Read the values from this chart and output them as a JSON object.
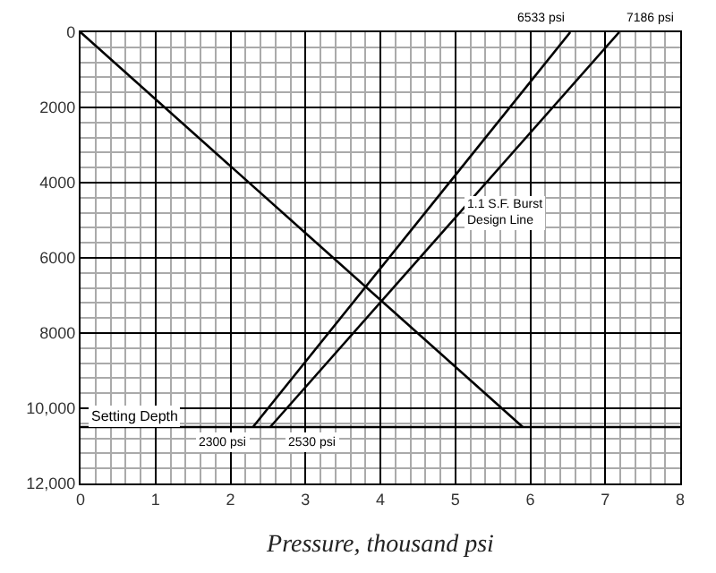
{
  "chart_data": {
    "type": "line",
    "xlabel": "Pressure, thousand psi",
    "xlim": [
      0,
      8
    ],
    "xticks": [
      0,
      1,
      2,
      3,
      4,
      5,
      6,
      7,
      8
    ],
    "ylim": [
      12000,
      0
    ],
    "yticks": [
      0,
      2000,
      4000,
      6000,
      8000,
      {
        "value": 10000,
        "label": "10,000"
      },
      {
        "value": 12000,
        "label": "12,000"
      }
    ],
    "series": [
      {
        "color": "#000000",
        "x": [
          0,
          5.9
        ],
        "values": [
          0,
          10500
        ]
      },
      {
        "color": "#000000",
        "x": [
          2.3,
          6.533
        ],
        "values": [
          10500,
          0
        ]
      },
      {
        "color": "#000000",
        "x": [
          2.53,
          7.186
        ],
        "values": [
          10500,
          0
        ]
      }
    ],
    "ref_lines": [
      {
        "axis": "y",
        "value": 10500,
        "label": "Setting Depth",
        "color": "#000000"
      }
    ],
    "annotations": [
      {
        "text": "6533 psi",
        "x": 6.533,
        "y": 0
      },
      {
        "text": "7186 psi",
        "x": 7.186,
        "y": 0
      },
      {
        "text": "2300 psi",
        "x": 2.3,
        "y": 10500
      },
      {
        "text": "2530 psi",
        "x": 2.53,
        "y": 10500
      },
      "1.1 S.F. Burst\nDesign Line"
    ],
    "grid": true,
    "marker": "none",
    "line_style": "solid"
  }
}
